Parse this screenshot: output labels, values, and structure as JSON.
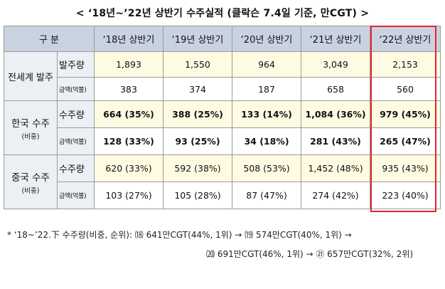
{
  "title": "< ‘18년~’22년 상반기 수주실적 (클락슨 7.4일 기준, 만CGT) >",
  "header": {
    "corner": "구 분",
    "years": [
      "‘18년 상반기",
      "‘19년 상반기",
      "‘20년 상반기",
      "‘21년 상반기",
      "‘22년 상반기"
    ]
  },
  "groups": [
    {
      "label": "전세계 발주",
      "sublabel": "",
      "rows": [
        {
          "type": "발주량",
          "values": [
            "1,893",
            "1,550",
            "964",
            "3,049",
            "2,153"
          ]
        },
        {
          "type": "금액(억불)",
          "values": [
            "383",
            "374",
            "187",
            "658",
            "560"
          ]
        }
      ]
    },
    {
      "label": "한국 수주",
      "sublabel": "(비중)",
      "rows": [
        {
          "type": "수주량",
          "values": [
            "664 (35%)",
            "388 (25%)",
            "133 (14%)",
            "1,084 (36%)",
            "979 (45%)"
          ]
        },
        {
          "type": "금액(억불)",
          "values": [
            "128 (33%)",
            "93 (25%)",
            "34 (18%)",
            "281 (43%)",
            "265 (47%)"
          ]
        }
      ]
    },
    {
      "label": "중국 수주",
      "sublabel": "(비중)",
      "rows": [
        {
          "type": "수주량",
          "values": [
            "620 (33%)",
            "592 (38%)",
            "508 (53%)",
            "1,452 (48%)",
            "935 (43%)"
          ]
        },
        {
          "type": "금액(억불)",
          "values": [
            "103 (27%)",
            "105 (28%)",
            "87 (47%)",
            "274 (42%)",
            "223 (40%)"
          ]
        }
      ]
    }
  ],
  "footnote": {
    "line1": "* ‘18~’22.下 수주량(비중, 순위): ⒅ 641만CGT(44%, 1위) → ⒆ 574만CGT(40%, 1위)   →",
    "line2": "⒇ 691만CGT(46%, 1위) → ㉑ 657만CGT(32%, 2위)"
  },
  "colors": {
    "header_bg": "#c9d2e0",
    "label_bg": "#eceff3",
    "highlight_row_bg": "#fffbe3",
    "highlight_border": "#e0262b"
  }
}
